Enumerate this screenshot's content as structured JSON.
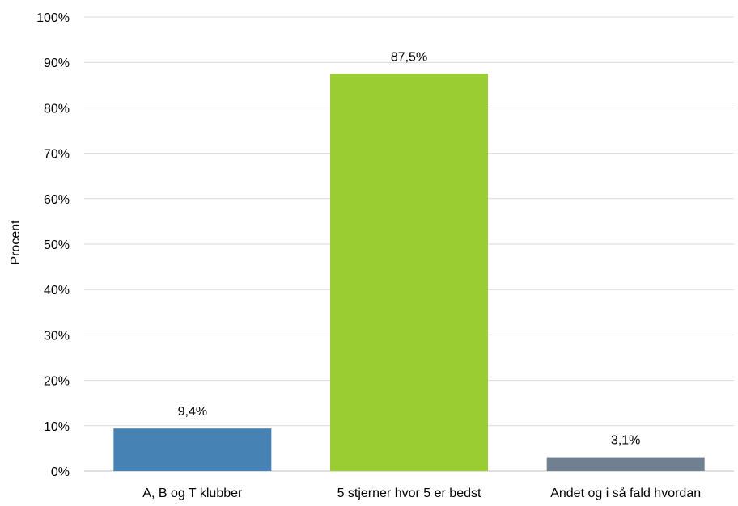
{
  "chart_data": {
    "type": "bar",
    "ylabel": "Procent",
    "xlabel": "",
    "ylim": [
      0,
      100
    ],
    "yticks": [
      "0%",
      "10%",
      "20%",
      "30%",
      "40%",
      "50%",
      "60%",
      "70%",
      "80%",
      "90%",
      "100%"
    ],
    "grid": true,
    "categories": [
      "A, B og T klubber",
      "5 stjerner hvor 5 er bedst",
      "Andet og i så fald hvordan"
    ],
    "values": [
      9.4,
      87.5,
      3.1
    ],
    "data_labels": [
      "9,4%",
      "87,5%",
      "3,1%"
    ],
    "colors": [
      "#4682B4",
      "#9ACD32",
      "#708090"
    ]
  }
}
